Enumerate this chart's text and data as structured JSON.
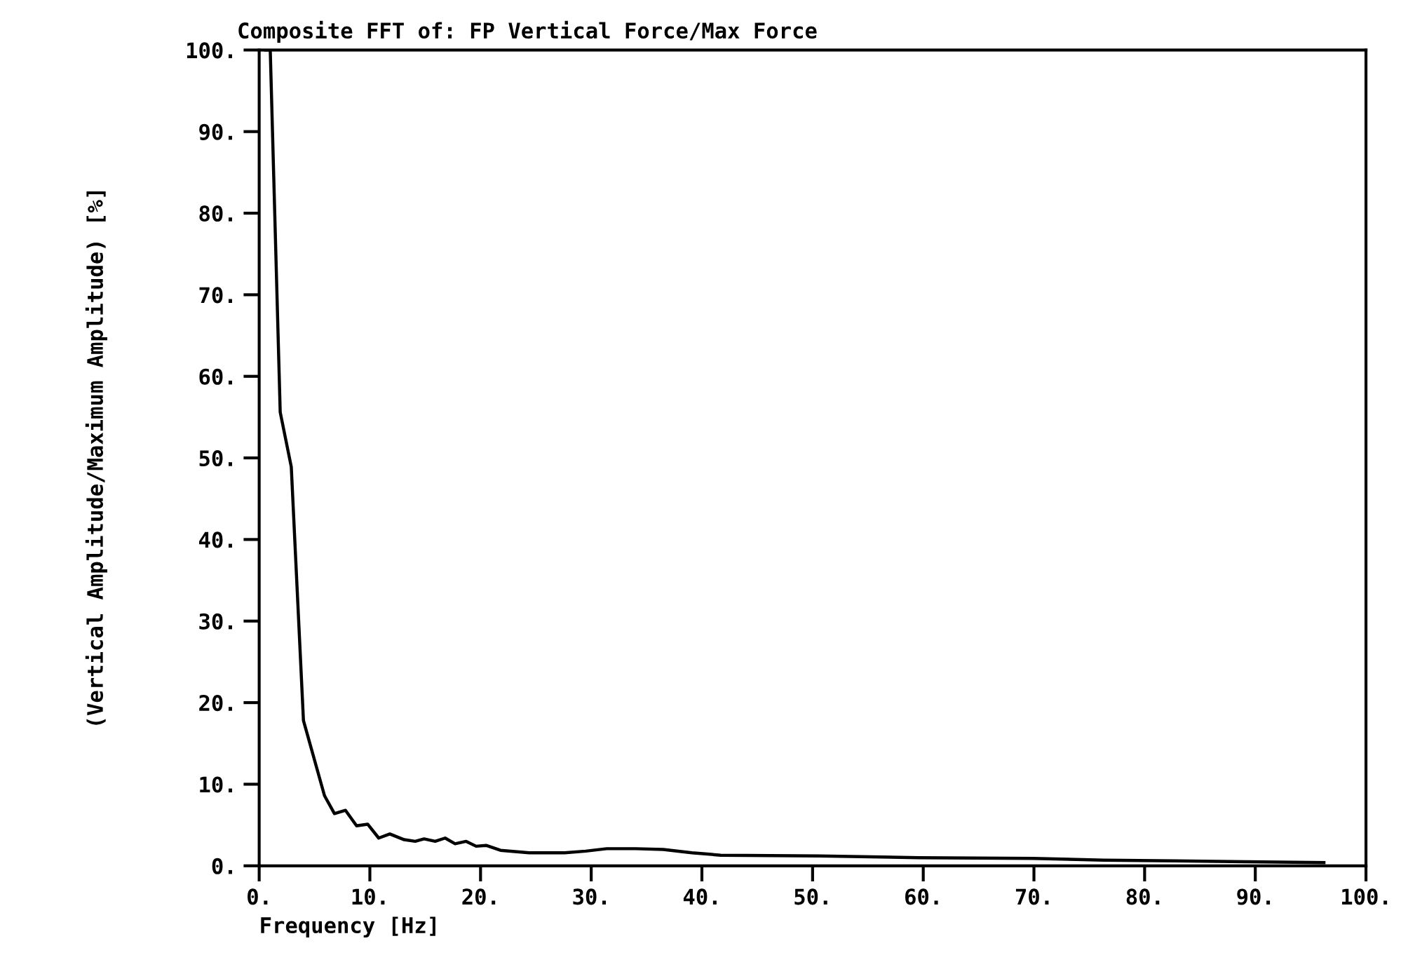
{
  "chart_data": {
    "type": "line",
    "title": "Composite FFT of: FP Vertical Force/Max Force",
    "xlabel": "Frequency [Hz]",
    "ylabel": "(Vertical Amplitude/Maximum Amplitude) [%]",
    "x": [
      0.6,
      1.0,
      1.9,
      2.9,
      4.0,
      5.9,
      6.8,
      7.8,
      8.8,
      9.8,
      10.8,
      11.8,
      13.1,
      14.1,
      14.9,
      15.9,
      16.8,
      17.7,
      18.7,
      19.6,
      20.5,
      21.8,
      24.4,
      27.6,
      29.5,
      31.4,
      34.0,
      36.5,
      39.1,
      41.7,
      50.6,
      59.6,
      69.9,
      76.3,
      82.7,
      89.1,
      96.2
    ],
    "series": [
      {
        "color": "#000000",
        "values": [
          100,
          100,
          55.6,
          48.9,
          17.8,
          8.6,
          6.4,
          6.8,
          4.9,
          5.1,
          3.4,
          3.9,
          3.2,
          3.0,
          3.3,
          3.0,
          3.4,
          2.7,
          3.0,
          2.4,
          2.5,
          1.9,
          1.6,
          1.6,
          1.8,
          2.1,
          2.1,
          2.0,
          1.6,
          1.3,
          1.2,
          1.0,
          0.9,
          0.7,
          0.6,
          0.5,
          0.4
        ]
      }
    ],
    "xlim": [
      0,
      100
    ],
    "ylim": [
      0,
      100
    ],
    "xticks": [
      {
        "value": 0,
        "label": "0."
      },
      {
        "value": 10,
        "label": "10."
      },
      {
        "value": 20,
        "label": "20."
      },
      {
        "value": 30,
        "label": "30."
      },
      {
        "value": 40,
        "label": "40."
      },
      {
        "value": 50,
        "label": "50."
      },
      {
        "value": 60,
        "label": "60."
      },
      {
        "value": 70,
        "label": "70."
      },
      {
        "value": 80,
        "label": "80."
      },
      {
        "value": 90,
        "label": "90."
      },
      {
        "value": 100,
        "label": "100."
      }
    ],
    "yticks": [
      {
        "value": 0,
        "label": "0."
      },
      {
        "value": 10,
        "label": "10."
      },
      {
        "value": 20,
        "label": "20."
      },
      {
        "value": 30,
        "label": "30."
      },
      {
        "value": 40,
        "label": "40."
      },
      {
        "value": 50,
        "label": "50."
      },
      {
        "value": 60,
        "label": "60."
      },
      {
        "value": 70,
        "label": "70."
      },
      {
        "value": 80,
        "label": "80."
      },
      {
        "value": 90,
        "label": "90."
      },
      {
        "value": 100,
        "label": "100."
      }
    ],
    "grid": false,
    "legend": false,
    "marker": "none",
    "line_style": "solid"
  }
}
